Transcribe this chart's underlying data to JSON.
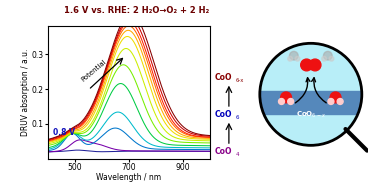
{
  "xlabel": "Wavelength / nm",
  "ylabel": "DRUV absorption / a.u.",
  "label_08v": "0.8 V",
  "label_potential": "Potential",
  "x_min": 400,
  "x_max": 1000,
  "y_min": 0.0,
  "y_max": 0.38,
  "xticks": [
    500,
    700,
    900
  ],
  "yticks": [
    0.1,
    0.2,
    0.3
  ],
  "background_color": "#ffffff",
  "title_color": "#6b0000",
  "label_08v_color": "#1111bb",
  "curves": [
    {
      "color": "#222299",
      "base": 0.018,
      "bg_amp": 0.005,
      "p1c": 510,
      "p1w": 28,
      "p1a": 0.003,
      "p2c": 600,
      "p2w": 40,
      "p2a": -0.002
    },
    {
      "color": "#7700aa",
      "base": 0.018,
      "bg_amp": 0.006,
      "p1c": 510,
      "p1w": 28,
      "p1a": 0.022,
      "p2c": 570,
      "p2w": 45,
      "p2a": 0.02
    },
    {
      "color": "#0077cc",
      "base": 0.02,
      "bg_amp": 0.01,
      "p1c": 490,
      "p1w": 28,
      "p1a": 0.045,
      "p2c": 650,
      "p2w": 50,
      "p2a": 0.06
    },
    {
      "color": "#00bbcc",
      "base": 0.022,
      "bg_amp": 0.015,
      "p1c": 490,
      "p1w": 30,
      "p1a": 0.04,
      "p2c": 660,
      "p2w": 55,
      "p2a": 0.1
    },
    {
      "color": "#00cc44",
      "base": 0.025,
      "bg_amp": 0.02,
      "p1c": 490,
      "p1w": 30,
      "p1a": 0.03,
      "p2c": 670,
      "p2w": 60,
      "p2a": 0.175
    },
    {
      "color": "#77ee00",
      "base": 0.03,
      "bg_amp": 0.025,
      "p1c": 490,
      "p1w": 28,
      "p1a": 0.02,
      "p2c": 680,
      "p2w": 65,
      "p2a": 0.22
    },
    {
      "color": "#ccee00",
      "base": 0.033,
      "bg_amp": 0.03,
      "p1c": 490,
      "p1w": 25,
      "p1a": 0.015,
      "p2c": 690,
      "p2w": 68,
      "p2a": 0.26
    },
    {
      "color": "#eedd00",
      "base": 0.036,
      "bg_amp": 0.032,
      "p1c": 490,
      "p1w": 22,
      "p1a": 0.012,
      "p2c": 695,
      "p2w": 72,
      "p2a": 0.29
    },
    {
      "color": "#ffaa00",
      "base": 0.038,
      "bg_amp": 0.033,
      "p1c": 490,
      "p1w": 20,
      "p1a": 0.01,
      "p2c": 698,
      "p2w": 75,
      "p2a": 0.305
    },
    {
      "color": "#ff6600",
      "base": 0.04,
      "bg_amp": 0.034,
      "p1c": 490,
      "p1w": 18,
      "p1a": 0.008,
      "p2c": 700,
      "p2w": 78,
      "p2a": 0.315
    },
    {
      "color": "#ff2200",
      "base": 0.04,
      "bg_amp": 0.035,
      "p1c": 490,
      "p1w": 18,
      "p1a": 0.007,
      "p2c": 702,
      "p2w": 80,
      "p2a": 0.325
    },
    {
      "color": "#cc0000",
      "base": 0.042,
      "bg_amp": 0.036,
      "p1c": 490,
      "p1w": 18,
      "p1a": 0.006,
      "p2c": 705,
      "p2w": 82,
      "p2a": 0.333
    },
    {
      "color": "#880000",
      "base": 0.043,
      "bg_amp": 0.037,
      "p1c": 490,
      "p1w": 18,
      "p1a": 0.005,
      "p2c": 708,
      "p2w": 84,
      "p2a": 0.345
    }
  ],
  "coo6x_color": "#880000",
  "coo6_color": "#0000bb",
  "coo4_color": "#880088"
}
